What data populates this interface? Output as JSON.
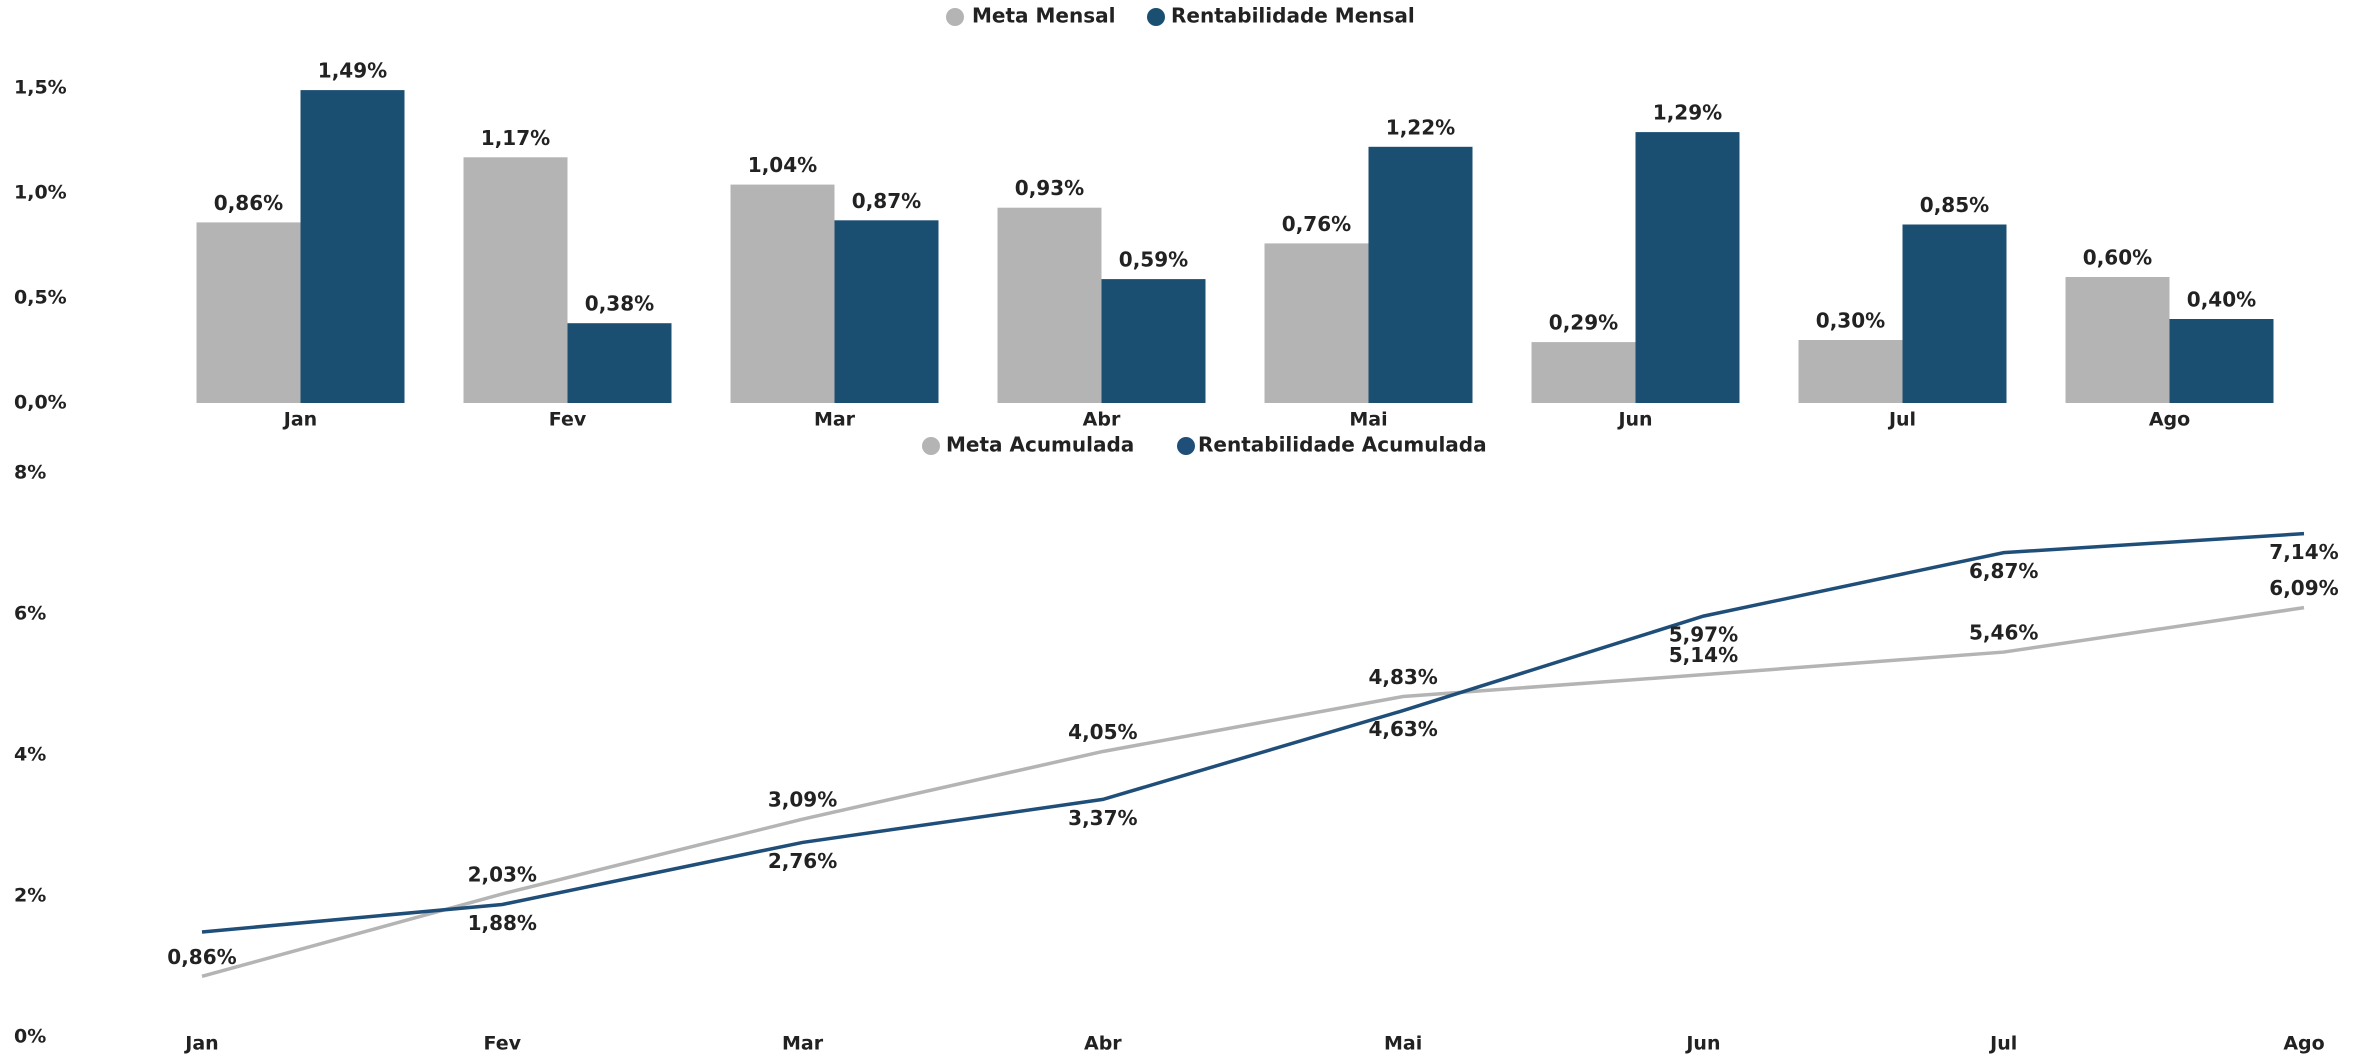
{
  "chart_data": [
    {
      "type": "bar",
      "categories": [
        "Jan",
        "Fev",
        "Mar",
        "Abr",
        "Mai",
        "Jun",
        "Jul",
        "Ago"
      ],
      "series": [
        {
          "name": "Meta Mensal",
          "color": "#b4b4b4",
          "values": [
            0.86,
            1.17,
            1.04,
            0.93,
            0.76,
            0.29,
            0.3,
            0.6
          ],
          "value_labels": [
            "0,86%",
            "1,17%",
            "1,04%",
            "0,93%",
            "0,76%",
            "0,29%",
            "0,30%",
            "0,60%"
          ]
        },
        {
          "name": "Rentabilidade Mensal",
          "color": "#1b4f72",
          "values": [
            1.49,
            0.38,
            0.87,
            0.59,
            1.22,
            1.29,
            0.85,
            0.4
          ],
          "value_labels": [
            "1,49%",
            "0,38%",
            "0,87%",
            "0,59%",
            "1,22%",
            "1,29%",
            "0,85%",
            "0,40%"
          ]
        }
      ],
      "ylim": [
        0,
        1.6
      ],
      "yticks": [
        {
          "value": 0,
          "label": "0,0%"
        },
        {
          "value": 0.5,
          "label": "0,5%"
        },
        {
          "value": 1.0,
          "label": "1,0%"
        },
        {
          "value": 1.5,
          "label": "1,5%"
        }
      ],
      "grid": false,
      "legend": "top"
    },
    {
      "type": "line",
      "categories": [
        "Jan",
        "Fev",
        "Mar",
        "Abr",
        "Mai",
        "Jun",
        "Jul",
        "Ago"
      ],
      "series": [
        {
          "name": "Meta Acumulada",
          "color": "#b4b4b4",
          "values": [
            0.86,
            2.03,
            3.09,
            4.05,
            4.83,
            5.14,
            5.46,
            6.09
          ],
          "value_labels": [
            "0,86%",
            "2,03%",
            "3,09%",
            "4,05%",
            "4,83%",
            "5,14%",
            "5,46%",
            "6,09%"
          ]
        },
        {
          "name": "Rentabilidade Acumulada",
          "color": "#1f4e79",
          "values": [
            1.49,
            1.88,
            2.76,
            3.37,
            4.63,
            5.97,
            6.87,
            7.14
          ],
          "value_labels": [
            null,
            "1,88%",
            "2,76%",
            "3,37%",
            "4,63%",
            "5,97%",
            "6,87%",
            "7,14%"
          ]
        }
      ],
      "ylim": [
        0,
        8
      ],
      "yticks": [
        {
          "value": 0,
          "label": "0%"
        },
        {
          "value": 2,
          "label": "2%"
        },
        {
          "value": 4,
          "label": "4%"
        },
        {
          "value": 6,
          "label": "6%"
        },
        {
          "value": 8,
          "label": "8%"
        }
      ],
      "grid": false,
      "legend": "top"
    }
  ]
}
